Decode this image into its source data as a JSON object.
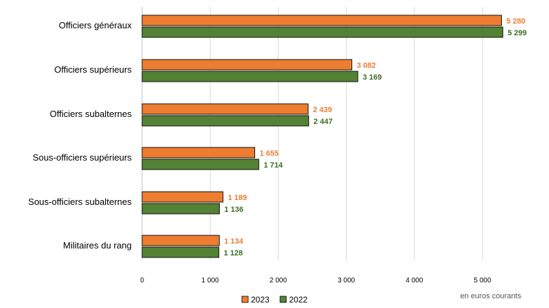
{
  "chart_data": {
    "type": "bar",
    "orientation": "horizontal",
    "categories": [
      "Officiers généraux",
      "Officiers supérieurs",
      "Officiers subalternes",
      "Sous-officiers supérieurs",
      "Sous-officiers subalternes",
      "Militaires du rang"
    ],
    "series": [
      {
        "name": "2023",
        "color": "#ED7D31",
        "values": [
          5280,
          3082,
          2439,
          1655,
          1189,
          1134
        ],
        "labels": [
          "5 280",
          "3 082",
          "2 439",
          "1 655",
          "1 189",
          "1 134"
        ]
      },
      {
        "name": "2022",
        "color": "#548235",
        "label_color": "#3B6E22",
        "values": [
          5299,
          3169,
          2447,
          1714,
          1136,
          1128
        ],
        "labels": [
          "5 299",
          "3 169",
          "2 447",
          "1 714",
          "1 136",
          "1 128"
        ]
      }
    ],
    "xlim": [
      0,
      6000
    ],
    "x_ticks": [
      0,
      1000,
      2000,
      3000,
      4000,
      5000
    ],
    "x_tick_labels": [
      "0",
      "1 000",
      "2 000",
      "3 000",
      "4 000",
      "5 000"
    ],
    "grid": "vertical",
    "legend": "bottom",
    "note": "en euros courants"
  }
}
